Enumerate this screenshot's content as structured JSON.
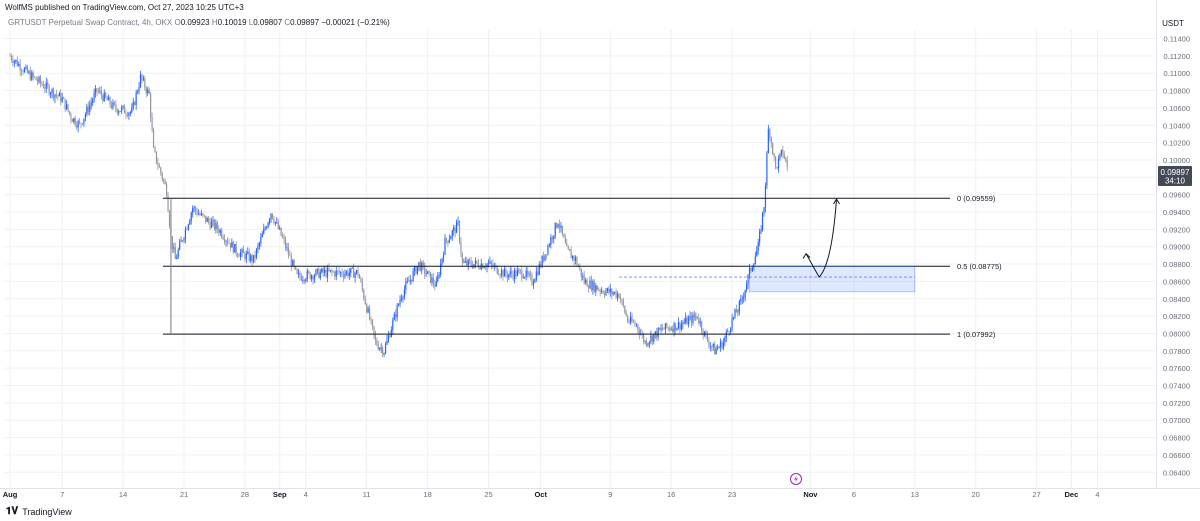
{
  "header": {
    "published": "WolfMS published on TradingView.com, Oct 27, 2023 10:25 UTC+3"
  },
  "symbol": {
    "name": "GRTUSDT Perpetual Swap Contract, 4h, OKX",
    "open_label": "O",
    "open": "0.09923",
    "high_label": "H",
    "high": "0.10019",
    "low_label": "L",
    "low": "0.09807",
    "close_label": "C",
    "close": "0.09897",
    "change": "−0.00021 (−0.21%)"
  },
  "currency": "USDT",
  "price_tag": {
    "price": "0.09897",
    "countdown": "34:10"
  },
  "footer": {
    "logo_text": "TradingView"
  },
  "colors": {
    "up": "#2962ff",
    "down": "#9598a1",
    "grid": "#eef0f3",
    "fib_line": "#131722",
    "zone": "#2962ff"
  },
  "chart_data": {
    "type": "candlestick",
    "ylim": [
      0.063,
      0.1152
    ],
    "y_ticks": [
      "0.11400",
      "0.11200",
      "0.11000",
      "0.10800",
      "0.10600",
      "0.10400",
      "0.10200",
      "0.10000",
      "0.09800",
      "0.09600",
      "0.09400",
      "0.09200",
      "0.09000",
      "0.08800",
      "0.08600",
      "0.08400",
      "0.08200",
      "0.08000",
      "0.07800",
      "0.07600",
      "0.07400",
      "0.07200",
      "0.07000",
      "0.06800",
      "0.06600",
      "0.06400"
    ],
    "x_ticks": [
      {
        "label": "Aug",
        "day": 0,
        "month": true
      },
      {
        "label": "7",
        "day": 6
      },
      {
        "label": "14",
        "day": 13
      },
      {
        "label": "21",
        "day": 20
      },
      {
        "label": "28",
        "day": 27
      },
      {
        "label": "Sep",
        "day": 31,
        "month": true
      },
      {
        "label": "4",
        "day": 34
      },
      {
        "label": "11",
        "day": 41
      },
      {
        "label": "18",
        "day": 48
      },
      {
        "label": "25",
        "day": 55
      },
      {
        "label": "Oct",
        "day": 61,
        "month": true
      },
      {
        "label": "9",
        "day": 69
      },
      {
        "label": "16",
        "day": 76
      },
      {
        "label": "23",
        "day": 83
      },
      {
        "label": "Nov",
        "day": 92,
        "month": true
      },
      {
        "label": "6",
        "day": 97
      },
      {
        "label": "13",
        "day": 104
      },
      {
        "label": "20",
        "day": 111
      },
      {
        "label": "27",
        "day": 118
      },
      {
        "label": "Dec",
        "day": 122,
        "month": true
      },
      {
        "label": "4",
        "day": 125
      }
    ],
    "price_path": [
      [
        0,
        0.112
      ],
      [
        2,
        0.11
      ],
      [
        4,
        0.1085
      ],
      [
        6,
        0.107
      ],
      [
        7,
        0.105
      ],
      [
        8,
        0.104
      ],
      [
        10,
        0.108
      ],
      [
        12,
        0.106
      ],
      [
        14,
        0.1055
      ],
      [
        15,
        0.1095
      ],
      [
        16,
        0.1075
      ],
      [
        16.5,
        0.101
      ],
      [
        17.5,
        0.098
      ],
      [
        18,
        0.0965
      ],
      [
        18.5,
        0.091
      ],
      [
        19,
        0.0885
      ],
      [
        21,
        0.0945
      ],
      [
        22,
        0.0935
      ],
      [
        24,
        0.092
      ],
      [
        26,
        0.0895
      ],
      [
        28,
        0.0885
      ],
      [
        30,
        0.094
      ],
      [
        31.5,
        0.0905
      ],
      [
        33,
        0.0865
      ],
      [
        36,
        0.087
      ],
      [
        40,
        0.087
      ],
      [
        42,
        0.079
      ],
      [
        43,
        0.078
      ],
      [
        45,
        0.0845
      ],
      [
        47,
        0.088
      ],
      [
        49,
        0.0855
      ],
      [
        50,
        0.0905
      ],
      [
        51.5,
        0.0925
      ],
      [
        52,
        0.088
      ],
      [
        55,
        0.088
      ],
      [
        57,
        0.0868
      ],
      [
        59,
        0.087
      ],
      [
        60,
        0.086
      ],
      [
        61,
        0.088
      ],
      [
        62,
        0.0905
      ],
      [
        63,
        0.093
      ],
      [
        64,
        0.0895
      ],
      [
        65,
        0.0885
      ],
      [
        66,
        0.086
      ],
      [
        68,
        0.085
      ],
      [
        70,
        0.0845
      ],
      [
        71,
        0.0815
      ],
      [
        72,
        0.081
      ],
      [
        73,
        0.079
      ],
      [
        75,
        0.0805
      ],
      [
        77,
        0.081
      ],
      [
        79,
        0.082
      ],
      [
        80,
        0.0795
      ],
      [
        81,
        0.078
      ],
      [
        82,
        0.079
      ],
      [
        83,
        0.0815
      ],
      [
        84,
        0.0835
      ],
      [
        85,
        0.087
      ],
      [
        86,
        0.09
      ],
      [
        86.7,
        0.095
      ],
      [
        87.2,
        0.104
      ],
      [
        88,
        0.099
      ],
      [
        88.8,
        0.101
      ],
      [
        89.4,
        0.099
      ]
    ],
    "fib_levels": [
      {
        "label": "0 (0.09559)",
        "price": 0.09559
      },
      {
        "label": "0.5 (0.08775)",
        "price": 0.08775
      },
      {
        "label": "1 (0.07992)",
        "price": 0.07992
      }
    ],
    "zone": {
      "top": 0.08775,
      "bottom": 0.0848,
      "from_day": 85,
      "to_day": 104
    },
    "zone_midline": 0.0865,
    "projection": [
      [
        91.5,
        0.0892
      ],
      [
        93,
        0.0865
      ],
      [
        94,
        0.088
      ],
      [
        95,
        0.0955
      ]
    ],
    "range_marker": {
      "day": 18.5,
      "high": 0.09559,
      "low": 0.07992
    }
  }
}
